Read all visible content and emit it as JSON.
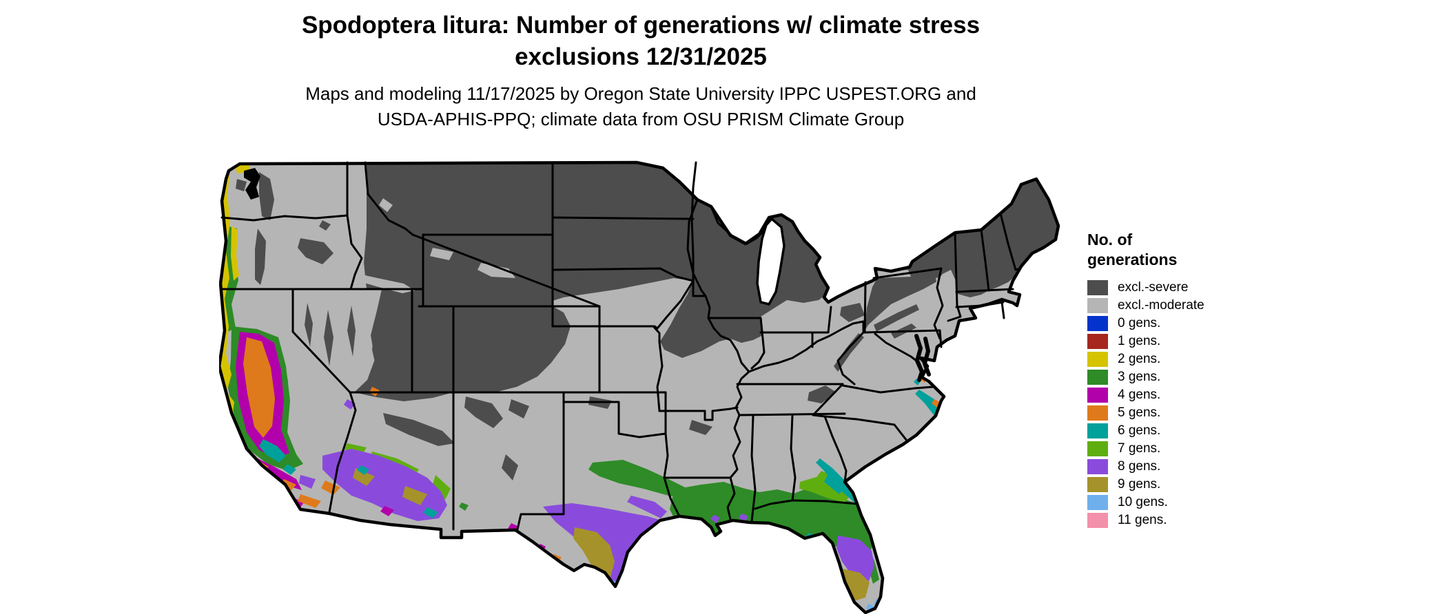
{
  "header": {
    "title_line1": "Spodoptera litura: Number of generations w/ climate stress",
    "title_line2": "exclusions 12/31/2025",
    "subtitle_line1": "Maps and modeling 11/17/2025 by Oregon State University IPPC USPEST.ORG and",
    "subtitle_line2": "USDA-APHIS-PPQ; climate data from OSU PRISM Climate Group"
  },
  "legend": {
    "title_line1": "No. of",
    "title_line2": "generations",
    "items": [
      {
        "id": "excl-severe",
        "label": "excl.-severe",
        "color": "#4d4d4d"
      },
      {
        "id": "excl-moderate",
        "label": "excl.-moderate",
        "color": "#b5b5b5"
      },
      {
        "id": "gens0",
        "label": "0 gens.",
        "color": "#0433cc"
      },
      {
        "id": "gens1",
        "label": "1 gens.",
        "color": "#a5271d"
      },
      {
        "id": "gens2",
        "label": "2 gens.",
        "color": "#d6c300"
      },
      {
        "id": "gens3",
        "label": "3 gens.",
        "color": "#2e8b27"
      },
      {
        "id": "gens4",
        "label": "4 gens.",
        "color": "#b200ab"
      },
      {
        "id": "gens5",
        "label": "5 gens.",
        "color": "#de7a1b"
      },
      {
        "id": "gens6",
        "label": "6 gens.",
        "color": "#00a09b"
      },
      {
        "id": "gens7",
        "label": "7 gens.",
        "color": "#5fae10"
      },
      {
        "id": "gens8",
        "label": "8 gens.",
        "color": "#8a4bdc"
      },
      {
        "id": "gens9",
        "label": "9 gens.",
        "color": "#a6922a"
      },
      {
        "id": "gens10",
        "label": "10 gens.",
        "color": "#6fb0ec"
      },
      {
        "id": "gens11",
        "label": "11 gens.",
        "color": "#f291a9"
      }
    ]
  },
  "map": {
    "land_color": "#b5b5b5",
    "outline_color": "#000000",
    "water_color": "#ffffff",
    "region_colors": {
      "severe": "#4d4d4d",
      "moderate": "#b5b5b5",
      "gens2": "#d6c300",
      "gens3": "#2e8b27",
      "gens4": "#b200ab",
      "gens5": "#de7a1b",
      "gens6": "#00a09b",
      "gens7": "#5fae10",
      "gens8": "#8a4bdc",
      "gens9": "#a6922a",
      "gens10": "#6fb0ec",
      "gens11": "#f291a9"
    }
  }
}
